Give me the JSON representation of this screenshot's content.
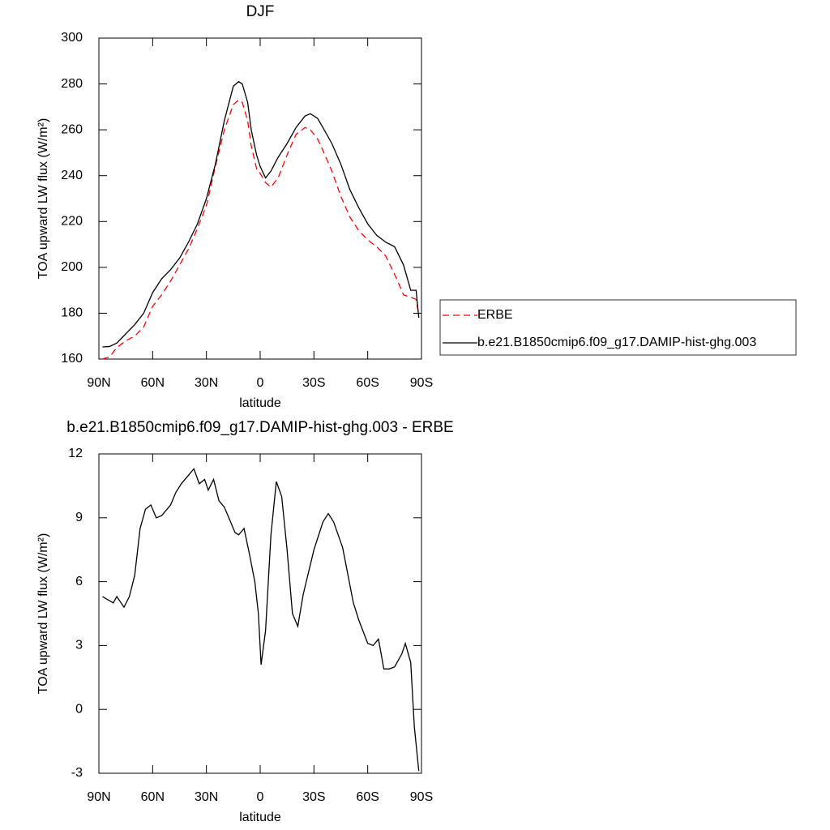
{
  "chart_data": [
    {
      "type": "line",
      "title": "DJF",
      "x_label": "latitude",
      "y_label": "TOA upward LW flux (W/m²)",
      "x": [
        88,
        84,
        80,
        75,
        70,
        65,
        60,
        55,
        50,
        45,
        40,
        35,
        30,
        25,
        20,
        15,
        12,
        10,
        7,
        5,
        2,
        0,
        -3,
        -6,
        -10,
        -15,
        -20,
        -25,
        -28,
        -32,
        -35,
        -40,
        -45,
        -50,
        -55,
        -60,
        -65,
        -70,
        -75,
        -80,
        -84,
        -87,
        -88.5
      ],
      "series": [
        {
          "name": "ERBE",
          "color": "#ff0000",
          "dashed": true,
          "values": [
            160,
            161,
            165,
            168,
            170,
            174,
            183,
            188,
            194,
            201,
            208,
            217,
            227,
            244,
            260,
            271,
            273,
            272,
            264,
            253,
            243,
            241,
            237,
            235,
            239,
            249,
            258,
            261,
            260,
            256,
            251,
            242,
            231,
            222,
            216,
            212,
            209,
            205,
            197,
            188,
            187,
            186,
            179
          ]
        },
        {
          "name": "b.e21.B1850cmip6.f09_g17.DAMIP-hist-ghg.003",
          "color": "#000000",
          "dashed": false,
          "values": [
            165.3,
            165.5,
            167,
            171,
            175,
            180,
            189,
            195,
            199,
            204,
            211,
            219,
            230,
            245,
            264,
            279,
            281,
            280,
            272,
            260,
            249,
            244,
            239,
            242,
            248,
            254,
            261,
            266,
            267,
            265,
            261,
            254,
            245,
            234,
            226,
            219,
            214,
            211,
            209,
            201,
            190,
            190,
            178
          ]
        }
      ],
      "xlim": [
        90,
        -90
      ],
      "xticks": [
        {
          "value": 90,
          "label": "90N"
        },
        {
          "value": 60,
          "label": "60N"
        },
        {
          "value": 30,
          "label": "30N"
        },
        0,
        {
          "value": -30,
          "label": "30S"
        },
        {
          "value": -60,
          "label": "60S"
        },
        {
          "value": -90,
          "label": "90S"
        }
      ],
      "ylim": [
        160,
        300
      ],
      "yticks": [
        160,
        180,
        200,
        220,
        240,
        260,
        280,
        300
      ],
      "legend": "right"
    },
    {
      "type": "line",
      "title": "b.e21.B1850cmip6.f09_g17.DAMIP-hist-ghg.003 - ERBE",
      "x_label": "latitude",
      "y_label": "TOA upward LW flux (W/m²)",
      "x": [
        88,
        84,
        82,
        80,
        76,
        73,
        70,
        67,
        64,
        61,
        58,
        55,
        50,
        47,
        44,
        40,
        37,
        34,
        31,
        29,
        26,
        23,
        20,
        16,
        14,
        12,
        9,
        6,
        3,
        1,
        -0.5,
        -3,
        -6,
        -9,
        -12,
        -15,
        -18,
        -21,
        -24,
        -30,
        -35,
        -38,
        -41,
        -46,
        -52,
        -55,
        -60,
        -63,
        -66,
        -69,
        -72,
        -75,
        -79,
        -81,
        -84,
        -86,
        -88.5
      ],
      "values": [
        5.3,
        5.1,
        5.0,
        5.3,
        4.8,
        5.3,
        6.3,
        8.5,
        9.4,
        9.6,
        9.0,
        9.1,
        9.6,
        10.2,
        10.6,
        11.0,
        11.3,
        10.6,
        10.8,
        10.3,
        10.8,
        9.8,
        9.5,
        8.7,
        8.3,
        8.2,
        8.5,
        7.3,
        6.0,
        4.5,
        2.1,
        3.7,
        8.2,
        10.7,
        10.0,
        7.5,
        4.5,
        3.9,
        5.4,
        7.5,
        8.8,
        9.2,
        8.8,
        7.6,
        5.0,
        4.2,
        3.1,
        3.0,
        3.3,
        1.9,
        1.9,
        2.0,
        2.6,
        3.1,
        2.2,
        -0.8,
        -2.9
      ],
      "color": "#000000",
      "xlim": [
        90,
        -90
      ],
      "xticks": [
        {
          "value": 90,
          "label": "90N"
        },
        {
          "value": 60,
          "label": "60N"
        },
        {
          "value": 30,
          "label": "30N"
        },
        0,
        {
          "value": -30,
          "label": "30S"
        },
        {
          "value": -60,
          "label": "60S"
        },
        {
          "value": -90,
          "label": "90S"
        }
      ],
      "ylim": [
        -3,
        12
      ],
      "yticks": [
        -3,
        0,
        3,
        6,
        9,
        12
      ]
    }
  ]
}
